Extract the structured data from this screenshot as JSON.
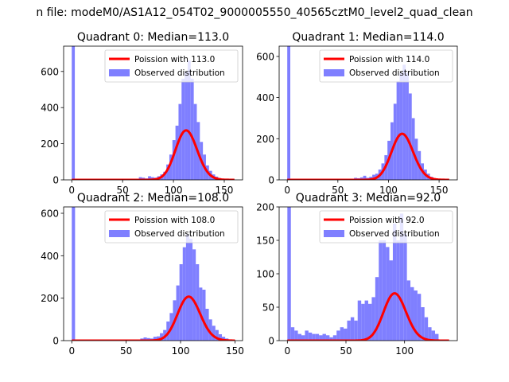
{
  "figure": {
    "suptitle": "n file: modeM0/AS1A12_054T02_9000005550_40565cztM0_level2_quad_clean"
  },
  "chart_data": [
    {
      "type": "bar",
      "title": "Quadrant 0: Median=113.0",
      "xlim": [
        -8,
        168
      ],
      "ylim": [
        0,
        740
      ],
      "xticks": [
        0,
        50,
        100,
        150
      ],
      "yticks": [
        0,
        200,
        400,
        600
      ],
      "legend": {
        "placement": "top-right",
        "entries": [
          "Poission with 113.0",
          "Observed distribution"
        ]
      },
      "series": [
        {
          "name": "Observed distribution",
          "kind": "histogram",
          "color": "#7f7fff",
          "bins": [
            [
              0,
              3,
              740
            ],
            [
              63,
              3,
              5
            ],
            [
              66,
              3,
              15
            ],
            [
              69,
              3,
              12
            ],
            [
              72,
              3,
              8
            ],
            [
              75,
              3,
              20
            ],
            [
              78,
              3,
              15
            ],
            [
              81,
              3,
              12
            ],
            [
              84,
              3,
              20
            ],
            [
              87,
              3,
              30
            ],
            [
              90,
              3,
              45
            ],
            [
              93,
              3,
              85
            ],
            [
              96,
              3,
              140
            ],
            [
              99,
              3,
              220
            ],
            [
              102,
              3,
              300
            ],
            [
              105,
              3,
              420
            ],
            [
              108,
              3,
              560
            ],
            [
              111,
              3,
              600
            ],
            [
              114,
              3,
              660
            ],
            [
              117,
              3,
              560
            ],
            [
              120,
              3,
              420
            ],
            [
              123,
              3,
              320
            ],
            [
              126,
              3,
              210
            ],
            [
              129,
              3,
              140
            ],
            [
              132,
              3,
              80
            ],
            [
              135,
              3,
              50
            ],
            [
              138,
              3,
              30
            ],
            [
              141,
              3,
              18
            ],
            [
              144,
              3,
              10
            ],
            [
              147,
              3,
              5
            ],
            [
              150,
              3,
              3
            ]
          ]
        },
        {
          "name": "Poission with 113.0",
          "kind": "poisson-curve",
          "color": "#ff0000",
          "mean": 113,
          "scale": 7300,
          "x_range": [
            0,
            160
          ]
        }
      ]
    },
    {
      "type": "bar",
      "title": "Quadrant 1: Median=114.0",
      "xlim": [
        -8,
        168
      ],
      "ylim": [
        0,
        650
      ],
      "xticks": [
        0,
        50,
        100,
        150
      ],
      "yticks": [
        0,
        200,
        400,
        600
      ],
      "legend": {
        "placement": "top-right",
        "entries": [
          "Poission with 114.0",
          "Observed distribution"
        ]
      },
      "series": [
        {
          "name": "Observed distribution",
          "kind": "histogram",
          "color": "#7f7fff",
          "bins": [
            [
              0,
              3,
              650
            ],
            [
              60,
              3,
              5
            ],
            [
              66,
              3,
              10
            ],
            [
              69,
              3,
              8
            ],
            [
              72,
              3,
              12
            ],
            [
              75,
              3,
              20
            ],
            [
              78,
              3,
              10
            ],
            [
              81,
              3,
              15
            ],
            [
              84,
              3,
              25
            ],
            [
              87,
              3,
              30
            ],
            [
              90,
              3,
              50
            ],
            [
              93,
              3,
              80
            ],
            [
              96,
              3,
              120
            ],
            [
              99,
              3,
              190
            ],
            [
              102,
              3,
              280
            ],
            [
              105,
              3,
              370
            ],
            [
              108,
              3,
              480
            ],
            [
              111,
              3,
              520
            ],
            [
              114,
              3,
              560
            ],
            [
              117,
              3,
              520
            ],
            [
              120,
              3,
              420
            ],
            [
              123,
              3,
              300
            ],
            [
              126,
              3,
              200
            ],
            [
              129,
              3,
              140
            ],
            [
              132,
              3,
              80
            ],
            [
              135,
              3,
              50
            ],
            [
              138,
              3,
              30
            ],
            [
              141,
              3,
              15
            ],
            [
              144,
              3,
              8
            ],
            [
              147,
              3,
              4
            ]
          ]
        },
        {
          "name": "Poission with 114.0",
          "kind": "poisson-curve",
          "color": "#ff0000",
          "mean": 114,
          "scale": 6000,
          "x_range": [
            0,
            160
          ]
        }
      ]
    },
    {
      "type": "bar",
      "title": "Quadrant 2: Median=108.0",
      "xlim": [
        -7.5,
        157
      ],
      "ylim": [
        0,
        630
      ],
      "xticks": [
        0,
        50,
        100,
        150
      ],
      "yticks": [
        0,
        200,
        400,
        600
      ],
      "legend": {
        "placement": "top-right",
        "entries": [
          "Poission with 108.0",
          "Observed distribution"
        ]
      },
      "series": [
        {
          "name": "Observed distribution",
          "kind": "histogram",
          "color": "#7f7fff",
          "bins": [
            [
              0,
              3,
              630
            ],
            [
              63,
              3,
              10
            ],
            [
              66,
              3,
              15
            ],
            [
              69,
              3,
              12
            ],
            [
              72,
              3,
              10
            ],
            [
              75,
              3,
              18
            ],
            [
              78,
              3,
              20
            ],
            [
              81,
              3,
              35
            ],
            [
              84,
              3,
              50
            ],
            [
              87,
              3,
              90
            ],
            [
              90,
              3,
              130
            ],
            [
              93,
              3,
              190
            ],
            [
              96,
              3,
              260
            ],
            [
              99,
              3,
              360
            ],
            [
              102,
              3,
              440
            ],
            [
              105,
              3,
              500
            ],
            [
              108,
              3,
              480
            ],
            [
              111,
              3,
              430
            ],
            [
              114,
              3,
              360
            ],
            [
              117,
              3,
              250
            ],
            [
              120,
              3,
              240
            ],
            [
              123,
              3,
              150
            ],
            [
              126,
              3,
              100
            ],
            [
              129,
              3,
              70
            ],
            [
              132,
              3,
              50
            ],
            [
              135,
              3,
              30
            ],
            [
              138,
              3,
              18
            ],
            [
              141,
              3,
              10
            ],
            [
              144,
              3,
              5
            ]
          ]
        },
        {
          "name": "Poission with 108.0",
          "kind": "poisson-curve",
          "color": "#ff0000",
          "mean": 108,
          "scale": 5400,
          "x_range": [
            0,
            150
          ]
        }
      ]
    },
    {
      "type": "bar",
      "title": "Quadrant 3: Median=92.0",
      "xlim": [
        -7,
        145
      ],
      "ylim": [
        0,
        200
      ],
      "xticks": [
        0,
        50,
        100
      ],
      "yticks": [
        0,
        50,
        100,
        150,
        200
      ],
      "legend": {
        "placement": "top-right",
        "entries": [
          "Poission with 92.0",
          "Observed distribution"
        ]
      },
      "series": [
        {
          "name": "Observed distribution",
          "kind": "histogram",
          "color": "#7f7fff",
          "bins": [
            [
              0,
              3,
              200
            ],
            [
              3,
              3,
              20
            ],
            [
              6,
              3,
              15
            ],
            [
              9,
              3,
              10
            ],
            [
              12,
              3,
              8
            ],
            [
              15,
              3,
              15
            ],
            [
              18,
              3,
              12
            ],
            [
              21,
              3,
              10
            ],
            [
              24,
              3,
              10
            ],
            [
              27,
              3,
              8
            ],
            [
              30,
              3,
              10
            ],
            [
              33,
              3,
              8
            ],
            [
              36,
              3,
              5
            ],
            [
              39,
              3,
              8
            ],
            [
              42,
              3,
              15
            ],
            [
              45,
              3,
              20
            ],
            [
              48,
              3,
              18
            ],
            [
              51,
              3,
              30
            ],
            [
              54,
              3,
              35
            ],
            [
              57,
              3,
              30
            ],
            [
              60,
              3,
              60
            ],
            [
              63,
              3,
              55
            ],
            [
              66,
              3,
              60
            ],
            [
              69,
              3,
              55
            ],
            [
              72,
              3,
              65
            ],
            [
              75,
              3,
              95
            ],
            [
              78,
              3,
              150
            ],
            [
              81,
              3,
              150
            ],
            [
              84,
              3,
              140
            ],
            [
              87,
              3,
              120
            ],
            [
              90,
              3,
              175
            ],
            [
              93,
              3,
              150
            ],
            [
              96,
              3,
              190
            ],
            [
              99,
              3,
              160
            ],
            [
              102,
              3,
              90
            ],
            [
              105,
              3,
              80
            ],
            [
              108,
              3,
              75
            ],
            [
              111,
              3,
              70
            ],
            [
              114,
              3,
              50
            ],
            [
              117,
              3,
              35
            ],
            [
              120,
              3,
              20
            ],
            [
              123,
              3,
              15
            ],
            [
              126,
              3,
              10
            ]
          ]
        },
        {
          "name": "Poission with 92.0",
          "kind": "poisson-curve",
          "color": "#ff0000",
          "mean": 92,
          "scale": 1700,
          "x_range": [
            0,
            138
          ]
        }
      ]
    }
  ]
}
